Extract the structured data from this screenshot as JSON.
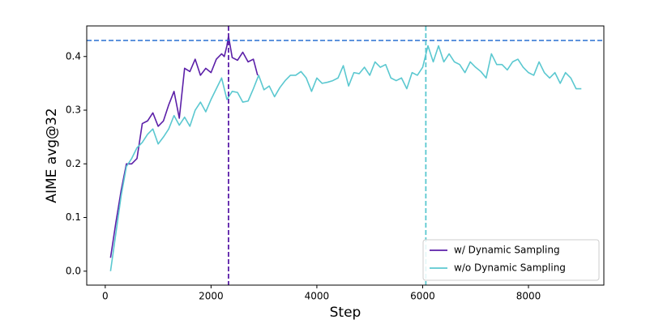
{
  "chart_data": {
    "type": "line",
    "xlabel": "Step",
    "ylabel": "AIME avg@32",
    "xlim": [
      -350,
      9425
    ],
    "ylim": [
      -0.026,
      0.457
    ],
    "xticks": [
      0,
      2000,
      4000,
      6000,
      8000
    ],
    "yticks": [
      {
        "value": 0.0,
        "label": "0.0"
      },
      {
        "value": 0.1,
        "label": "0.1"
      },
      {
        "value": 0.2,
        "label": "0.2"
      },
      {
        "value": 0.3,
        "label": "0.3"
      },
      {
        "value": 0.4,
        "label": "0.4"
      }
    ],
    "legend": "lower right",
    "hlines": [
      {
        "value": 0.43,
        "color": "#3a7bd5"
      }
    ],
    "vlines": [
      {
        "value": 2330,
        "color": "#5b1fa8"
      },
      {
        "value": 6060,
        "color": "#5bc8d0"
      }
    ],
    "series": [
      {
        "name": "w/ Dynamic Sampling",
        "color": "#5b1fa8",
        "x": [
          100,
          200,
          300,
          400,
          500,
          600,
          700,
          800,
          900,
          1000,
          1100,
          1200,
          1300,
          1400,
          1500,
          1600,
          1700,
          1800,
          1900,
          2000,
          2100,
          2200,
          2250,
          2300,
          2330,
          2400,
          2500,
          2600,
          2700,
          2800,
          2880
        ],
        "values": [
          0.025,
          0.09,
          0.15,
          0.2,
          0.2,
          0.21,
          0.275,
          0.28,
          0.295,
          0.27,
          0.28,
          0.31,
          0.335,
          0.285,
          0.378,
          0.372,
          0.395,
          0.365,
          0.378,
          0.37,
          0.395,
          0.405,
          0.4,
          0.42,
          0.438,
          0.398,
          0.393,
          0.408,
          0.39,
          0.395,
          0.365
        ]
      },
      {
        "name": "w/o Dynamic Sampling",
        "color": "#5bc8d0",
        "x": [
          100,
          200,
          300,
          400,
          500,
          600,
          700,
          800,
          900,
          1000,
          1100,
          1200,
          1300,
          1400,
          1500,
          1600,
          1700,
          1800,
          1900,
          2000,
          2100,
          2200,
          2300,
          2400,
          2500,
          2600,
          2700,
          2800,
          2900,
          3000,
          3100,
          3200,
          3300,
          3400,
          3500,
          3600,
          3700,
          3800,
          3900,
          4000,
          4100,
          4200,
          4300,
          4400,
          4500,
          4600,
          4700,
          4800,
          4900,
          5000,
          5100,
          5200,
          5300,
          5400,
          5500,
          5600,
          5700,
          5800,
          5900,
          6000,
          6100,
          6200,
          6300,
          6400,
          6500,
          6600,
          6700,
          6800,
          6900,
          7000,
          7100,
          7200,
          7300,
          7400,
          7500,
          7600,
          7700,
          7800,
          7900,
          8000,
          8100,
          8200,
          8300,
          8400,
          8500,
          8600,
          8700,
          8800,
          8900,
          9000
        ],
        "values": [
          0.0,
          0.07,
          0.14,
          0.195,
          0.21,
          0.23,
          0.24,
          0.255,
          0.265,
          0.237,
          0.25,
          0.265,
          0.29,
          0.272,
          0.287,
          0.27,
          0.3,
          0.315,
          0.297,
          0.32,
          0.34,
          0.36,
          0.32,
          0.335,
          0.333,
          0.315,
          0.317,
          0.34,
          0.365,
          0.338,
          0.345,
          0.325,
          0.342,
          0.355,
          0.365,
          0.365,
          0.372,
          0.36,
          0.335,
          0.36,
          0.35,
          0.352,
          0.355,
          0.36,
          0.383,
          0.345,
          0.37,
          0.368,
          0.38,
          0.365,
          0.39,
          0.38,
          0.385,
          0.36,
          0.355,
          0.36,
          0.34,
          0.37,
          0.365,
          0.38,
          0.42,
          0.39,
          0.42,
          0.39,
          0.405,
          0.39,
          0.385,
          0.37,
          0.39,
          0.38,
          0.372,
          0.36,
          0.405,
          0.385,
          0.385,
          0.375,
          0.39,
          0.395,
          0.38,
          0.37,
          0.365,
          0.39,
          0.37,
          0.36,
          0.37,
          0.35,
          0.37,
          0.36,
          0.34,
          0.34
        ]
      }
    ]
  }
}
